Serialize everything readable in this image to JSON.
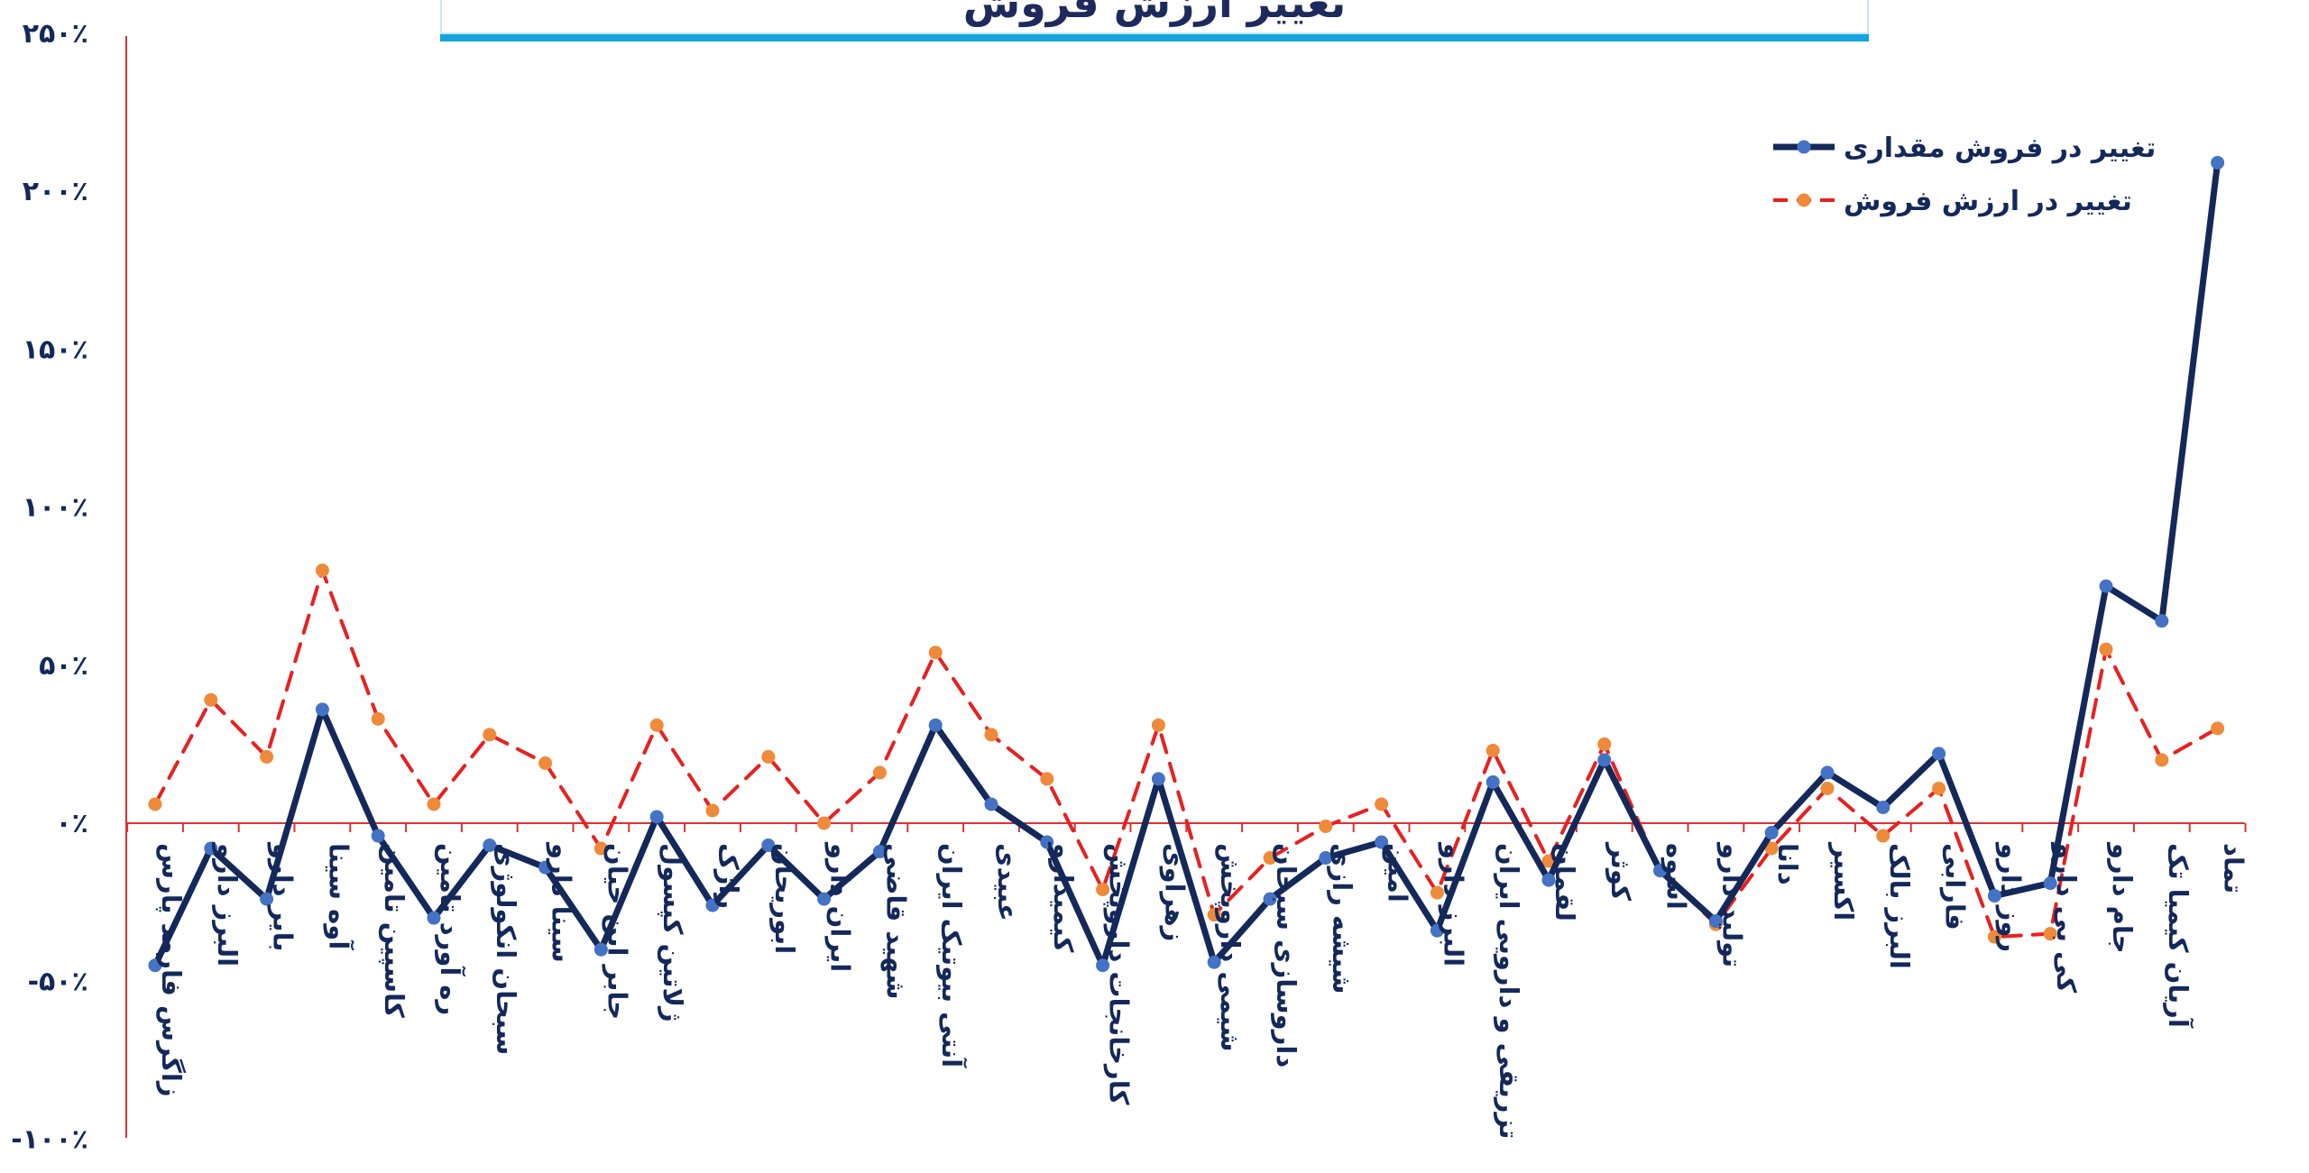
{
  "title": "تغییر ارزش فروش",
  "colors": {
    "axis": "#e03030",
    "series_quantity_line": "#14285a",
    "series_quantity_marker": "#4472c4",
    "series_value_line": "#e82020",
    "series_value_marker": "#ef8a3a",
    "text": "#14285a"
  },
  "chart_data": {
    "type": "line",
    "title": "تغییر ارزش فروش",
    "legend_position": "top-right",
    "ylim": [
      -100,
      250
    ],
    "y_ticks": [
      250,
      200,
      150,
      100,
      50,
      0,
      -50,
      -100
    ],
    "y_tick_labels": [
      "۲۵۰٪",
      "۲۰۰٪",
      "۱۵۰٪",
      "۱۰۰٪",
      "۵۰٪",
      "۰٪",
      "-۵۰٪",
      "-۱۰۰٪"
    ],
    "categories": [
      "زاگرس فارمد پارس",
      "البرز دارو",
      "بایر دارو",
      "آوه سینا",
      "کاسپین تامین",
      "ره آورد تامین",
      "سبحان انکولوژی",
      "سینا دارو",
      "جابر ابن حیان",
      "ژلاتین کپسول",
      "رازک",
      "ابوریحان",
      "ایران دارو",
      "شهید قاضی",
      "آنتی بیوتیک ایران",
      "عبیدی",
      "کیمیدارو",
      "کارخانجات داروپخش",
      "زهراوی",
      "شیمی داروپخش",
      "داروسازی سبحان",
      "شیشه رازی",
      "امین",
      "البرز دارو",
      "تزریقی و دارویی ایران",
      "لقمان",
      "کوثر",
      "اسوه",
      "تولید دارو",
      "دانا",
      "اکسیر",
      "البرز بالک",
      "فارابی",
      "روز دارو",
      "کی بی دارو",
      "جام دارو",
      "آریان کیمیا تک",
      "تماد"
    ],
    "series": [
      {
        "name": "تغییر در فروش مقداری",
        "style": "solid",
        "values": [
          -45,
          -8,
          -24,
          36,
          -4,
          -30,
          -7,
          -14,
          -40,
          2,
          -26,
          -7,
          -24,
          -9,
          31,
          6,
          -6,
          -45,
          14,
          -44,
          -24,
          -11,
          -6,
          -34,
          13,
          -18,
          20,
          -15,
          -31,
          -3,
          16,
          5,
          22,
          -23,
          -19,
          75,
          64,
          209
        ]
      },
      {
        "name": "تغییر در ارزش فروش",
        "style": "dashed",
        "values": [
          6,
          39,
          21,
          80,
          33,
          6,
          28,
          19,
          -8,
          31,
          4,
          21,
          0,
          16,
          54,
          28,
          14,
          -21,
          31,
          -29,
          -11,
          -1,
          6,
          -22,
          23,
          -12,
          25,
          -15,
          -32,
          -8,
          11,
          -4,
          11,
          -36,
          -35,
          55,
          20,
          30
        ]
      }
    ]
  }
}
